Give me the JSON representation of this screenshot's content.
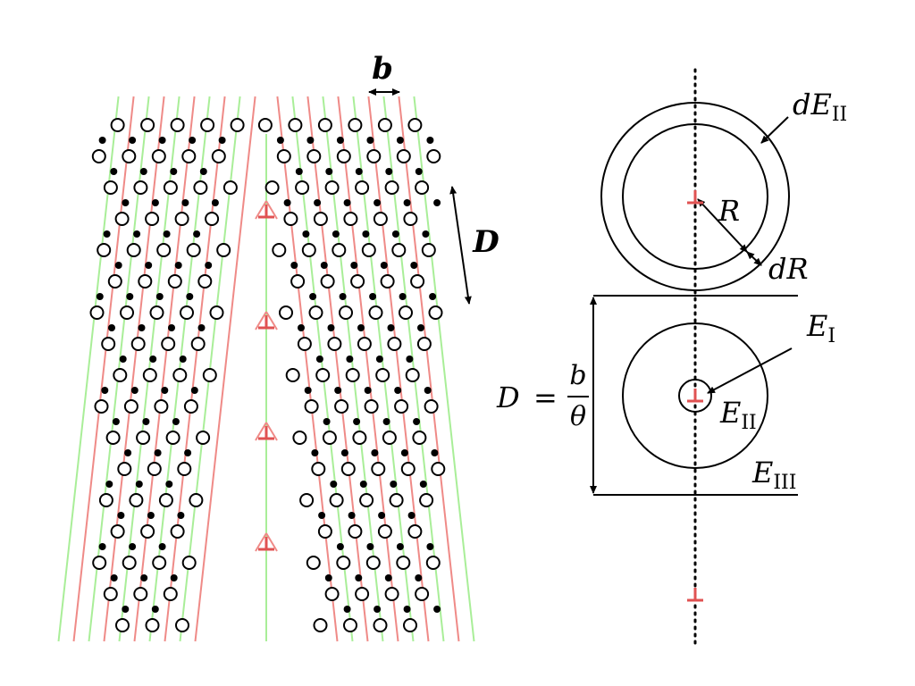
{
  "colors": {
    "background": "#ffffff",
    "ink": "#000000",
    "plane_a": "#ef8a87",
    "plane_b": "#a9ee98",
    "dislocation": "#e05252"
  },
  "lattice_panel": {
    "burgers_label": "b",
    "spacing_label": "D"
  },
  "model_panel": {
    "dE_II": {
      "base": "dE",
      "sub": "II"
    },
    "R_label": "R",
    "dR_label": "dR",
    "E_I": {
      "base": "E",
      "sub": "I"
    },
    "E_II": {
      "base": "E",
      "sub": "II"
    },
    "E_III": {
      "base": "E",
      "sub": "III"
    },
    "formula": {
      "lhs": "D",
      "eq": "=",
      "num": "b",
      "den": "θ"
    }
  }
}
